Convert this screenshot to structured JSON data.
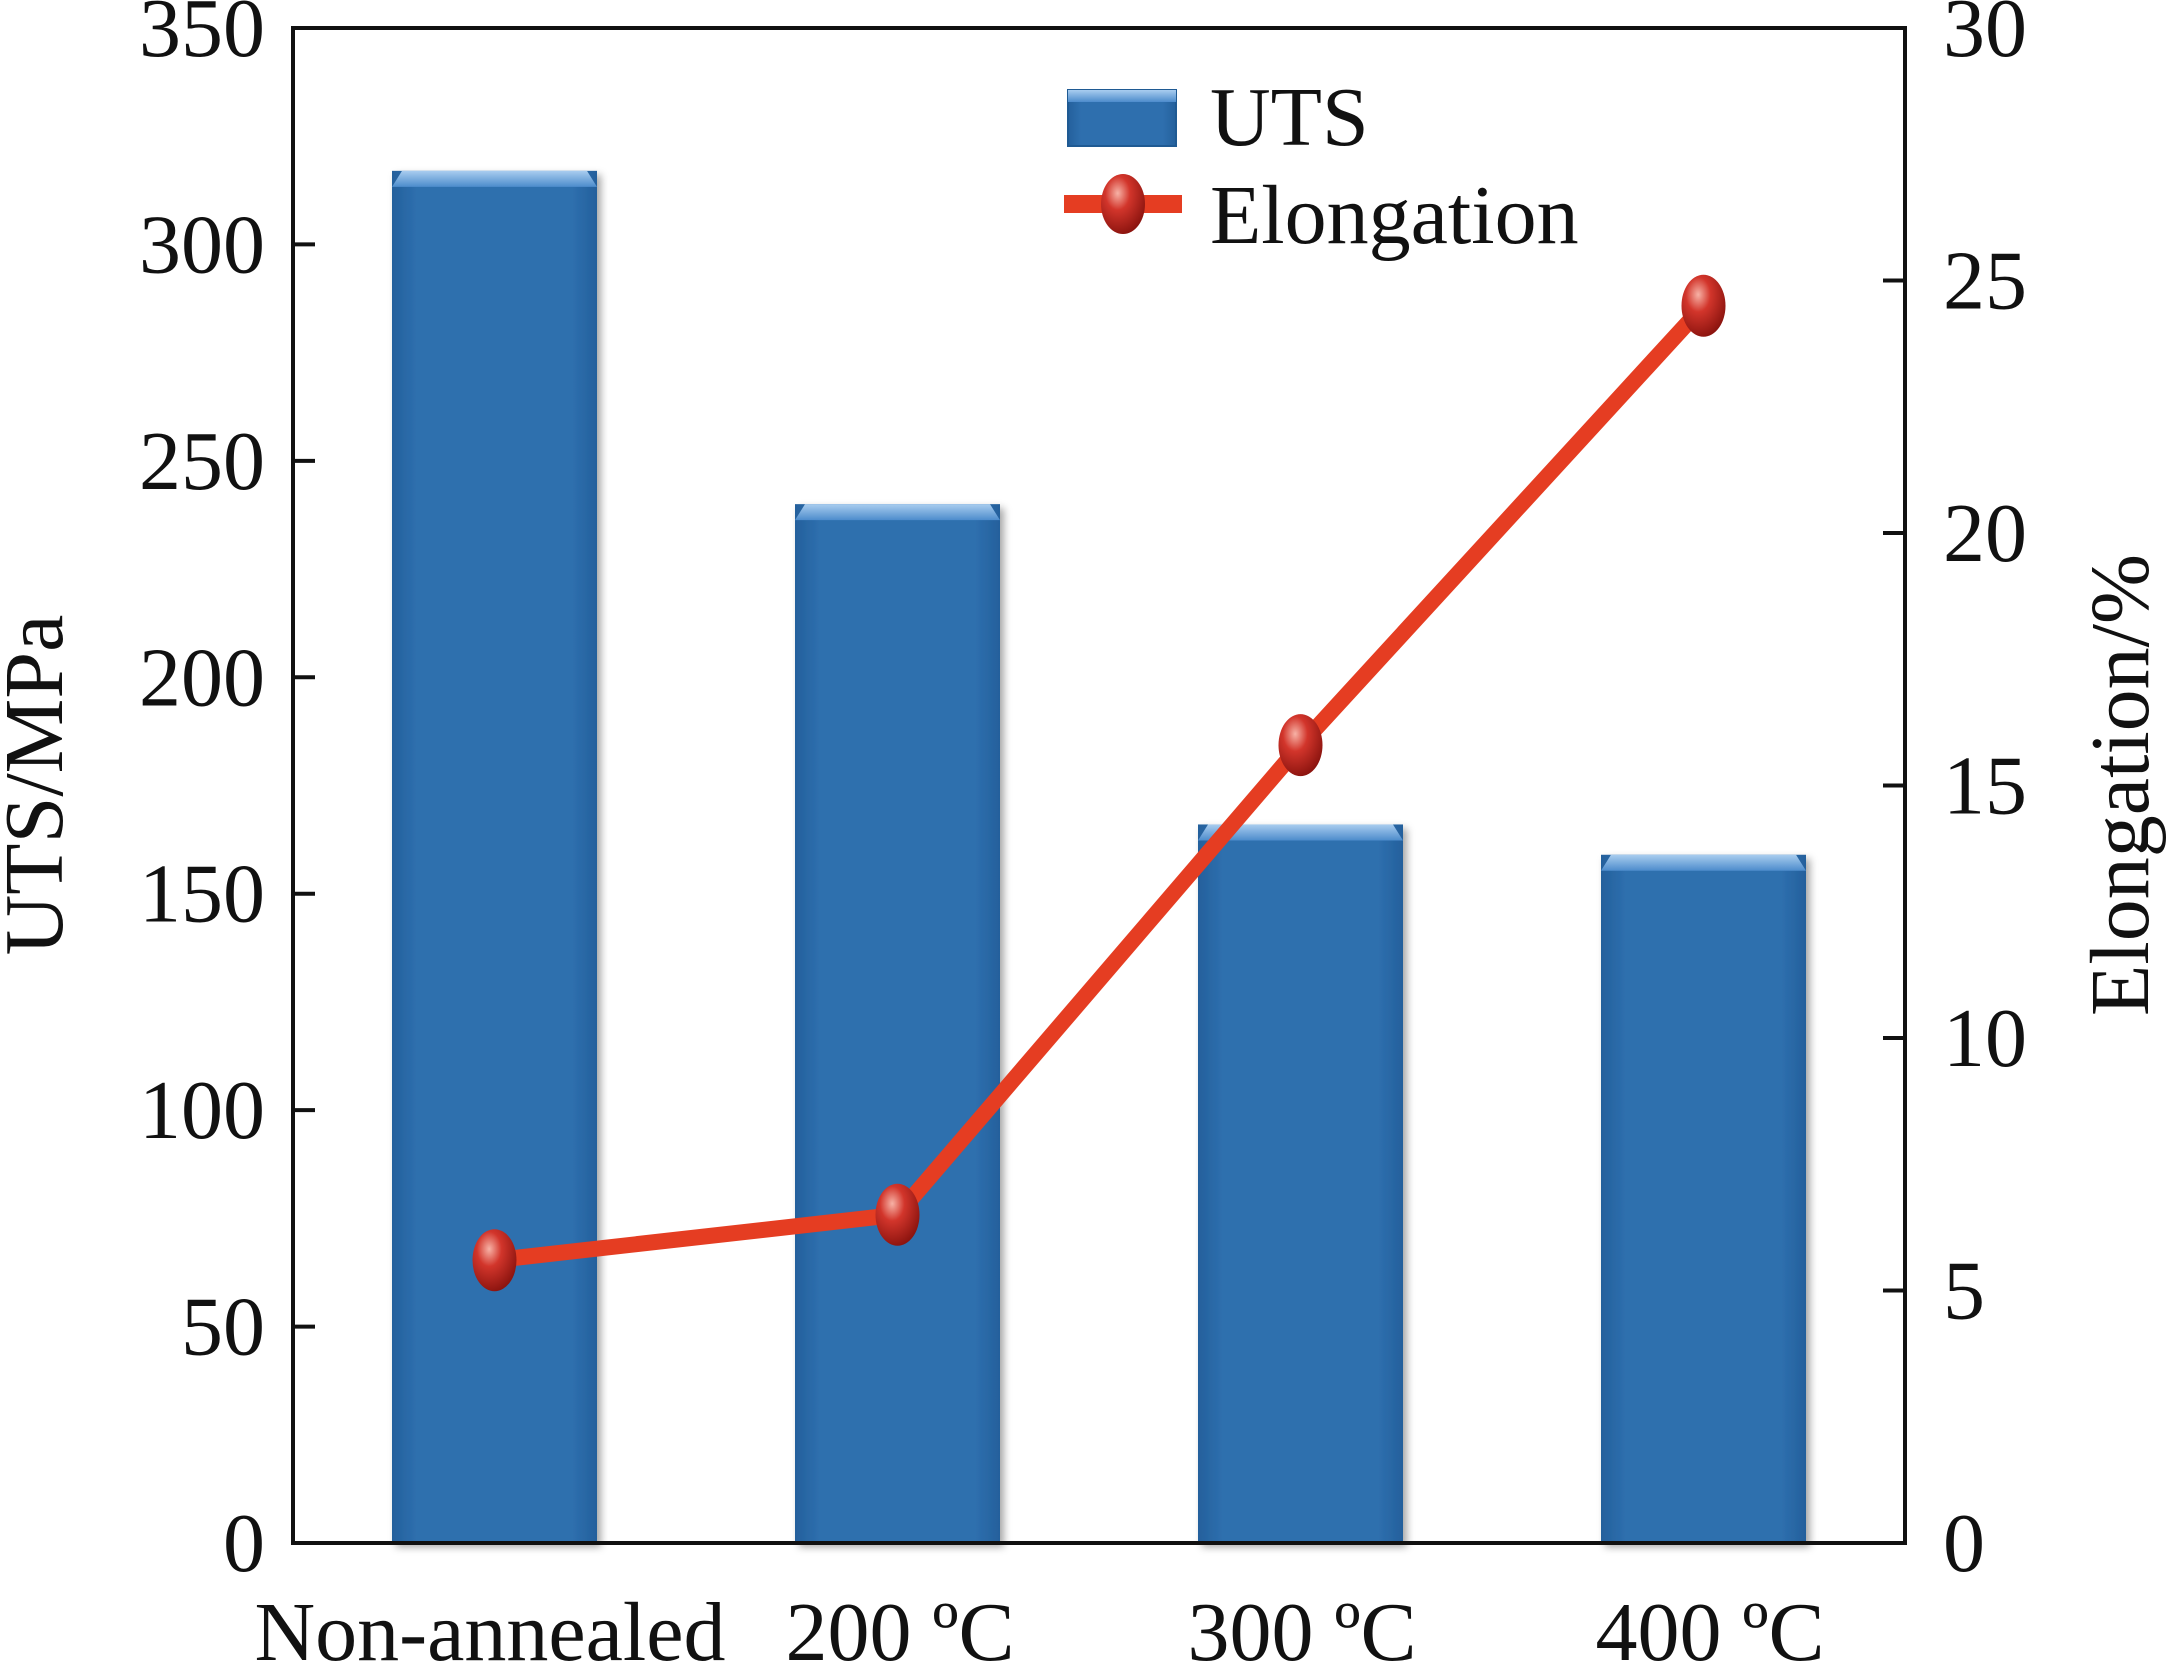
{
  "chart_data": {
    "type": "bar",
    "categories": [
      "Non-annealed",
      "200 ºC",
      "300 ºC",
      "400 ºC"
    ],
    "series": [
      {
        "name": "UTS",
        "type": "bar",
        "axis": "left",
        "values": [
          317,
          240,
          166,
          159
        ],
        "color": "#2e6fae"
      },
      {
        "name": "Elongation",
        "type": "line",
        "axis": "right",
        "values": [
          5.6,
          6.5,
          15.8,
          24.5
        ],
        "color": "#e53d22",
        "marker_color": "#c8241c"
      }
    ],
    "ylabel": "UTS/MPa",
    "y2label": "Elongation/%",
    "ylim": [
      0,
      350
    ],
    "y2lim": [
      0,
      30
    ],
    "yticks": [
      "0",
      "50",
      "100",
      "150",
      "200",
      "250",
      "300",
      "350"
    ],
    "y2ticks": [
      "0",
      "5",
      "10",
      "15",
      "20",
      "25",
      "30"
    ],
    "legend_position": "top-center",
    "grid": false
  }
}
